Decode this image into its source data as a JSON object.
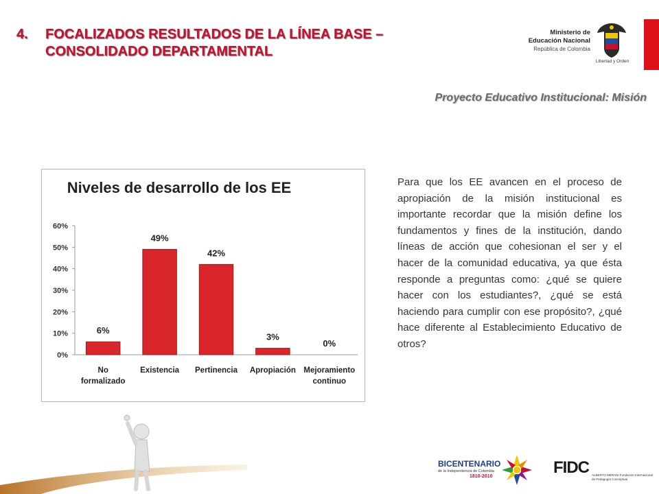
{
  "header": {
    "number": "4.",
    "title": "FOCALIZADOS RESULTADOS DE LA LÍNEA BASE – CONSOLIDADO DEPARTAMENTAL"
  },
  "ministry_logo": {
    "line1": "Ministerio de",
    "line2": "Educación Nacional",
    "line3": "República de Colombia",
    "motto": "Libertad y Orden"
  },
  "subtitle": "Proyecto Educativo Institucional: Misión",
  "chart_data": {
    "type": "bar",
    "title": "Niveles de desarrollo de los EE",
    "categories": [
      "No formalizado",
      "Existencia",
      "Pertinencia",
      "Apropiación",
      "Mejoramiento continuo"
    ],
    "category_lines": [
      [
        "No",
        "formalizado"
      ],
      [
        "Existencia"
      ],
      [
        "Pertinencia"
      ],
      [
        "Apropiación"
      ],
      [
        "Mejoramiento",
        "continuo"
      ]
    ],
    "values": [
      6,
      49,
      42,
      3,
      0
    ],
    "data_labels": [
      "6%",
      "49%",
      "42%",
      "3%",
      "0%"
    ],
    "ylim": [
      0,
      60
    ],
    "yticks": [
      "0%",
      "10%",
      "20%",
      "30%",
      "40%",
      "50%",
      "60%"
    ],
    "xlabel": "",
    "ylabel": "",
    "grid": false,
    "bar_color": "#d9262b"
  },
  "body_text": "Para que los EE avancen en el proceso de apropiación de la misión institucional es importante recordar que la misión define los fundamentos y fines de la institución, dando líneas de acción que cohesionan el ser y el hacer de la comunidad educativa, ya que ésta responde a preguntas como: ¿qué se quiere hacer con los estudiantes?, ¿qué se está haciendo para cumplir con ese propósito?, ¿qué hace diferente al Establecimiento Educativo de otros?",
  "footer": {
    "bicentenario": "BICENTENARIO",
    "bicentenario_sub": "de la Independencia de Colombia",
    "bicentenario_years": "1810-2010",
    "fidc": "FIDC",
    "fidc_sub": "ALBERTO MERANI Fundación Internacional de Pedagogía Conceptual"
  },
  "colors": {
    "title_red": "#c8102e",
    "accent_red": "#e0101b",
    "subtitle_gray": "#6b6b6b"
  }
}
